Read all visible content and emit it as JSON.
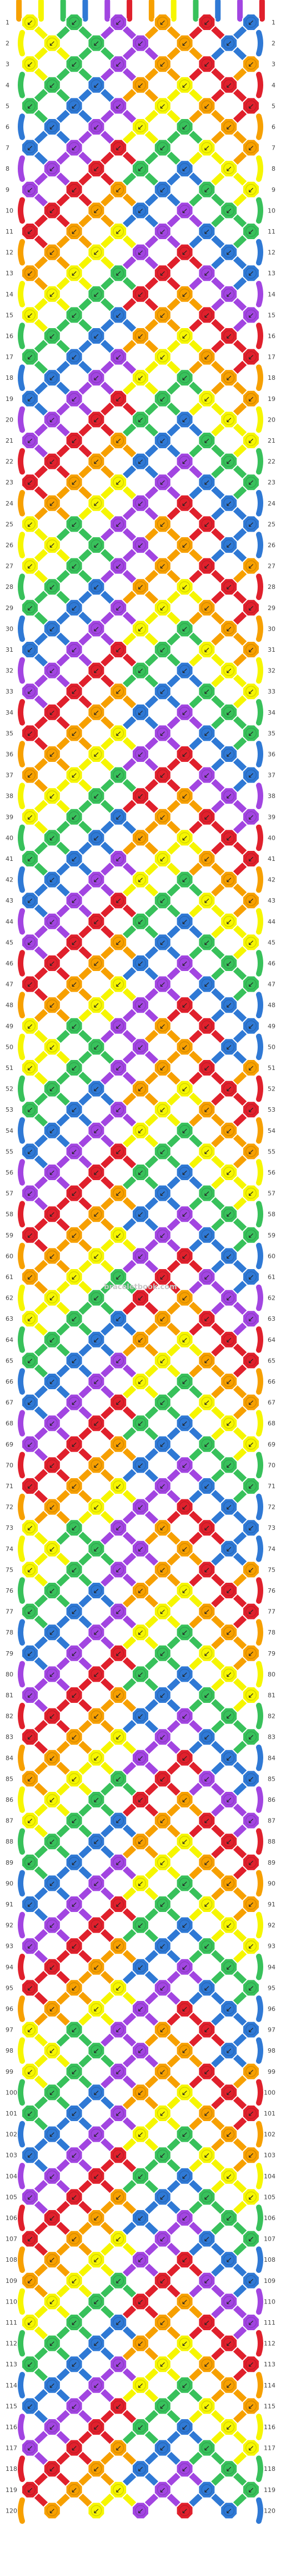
{
  "watermark": "braceletbook.com",
  "row_count": 120,
  "strand_colors": [
    "#f7a000",
    "#f6f600",
    "#38c15b",
    "#2f79d5",
    "#a245e1",
    "#e0202c",
    "#f7a000",
    "#f6f600",
    "#38c15b",
    "#2f79d5",
    "#a245e1",
    "#e0202c"
  ],
  "direction_glyph": "↙",
  "pattern_rows": [
    [
      "#f6f600",
      "#38c15b",
      "#a245e1",
      "#f7a000",
      "#e0202c",
      "#2f79d5"
    ],
    [
      "#f6f600",
      "#38c15b",
      "#a245e1",
      "#f7a000",
      "#2f79d5"
    ],
    [
      "#f6f600",
      "#38c15b",
      "#a245e1",
      "#f7a000",
      "#e0202c",
      "#f7a000"
    ],
    [
      "#38c15b",
      "#2f79d5",
      "#f7a000",
      "#f6f600",
      "#e0202c"
    ],
    [
      "#38c15b",
      "#2f79d5",
      "#a245e1",
      "#f6f600",
      "#f7a000",
      "#e0202c"
    ],
    [
      "#2f79d5",
      "#a245e1",
      "#f6f600",
      "#38c15b",
      "#f7a000"
    ],
    [
      "#2f79d5",
      "#a245e1",
      "#e0202c",
      "#38c15b",
      "#f6f600",
      "#f7a000"
    ],
    [
      "#a245e1",
      "#e0202c",
      "#38c15b",
      "#2f79d5",
      "#f6f600"
    ],
    [
      "#a245e1",
      "#e0202c",
      "#f7a000",
      "#2f79d5",
      "#38c15b",
      "#f6f600"
    ],
    [
      "#e0202c",
      "#f7a000",
      "#2f79d5",
      "#a245e1",
      "#38c15b"
    ],
    [
      "#e0202c",
      "#f7a000",
      "#f6f600",
      "#a245e1",
      "#2f79d5",
      "#38c15b"
    ],
    [
      "#f7a000",
      "#f6f600",
      "#a245e1",
      "#e0202c",
      "#2f79d5"
    ],
    [
      "#f7a000",
      "#f6f600",
      "#38c15b",
      "#e0202c",
      "#a245e1",
      "#2f79d5"
    ],
    [
      "#f6f600",
      "#38c15b",
      "#e0202c",
      "#f7a000",
      "#a245e1"
    ],
    [
      "#f6f600",
      "#38c15b",
      "#2f79d5",
      "#f7a000",
      "#e0202c",
      "#a245e1"
    ],
    [
      "#38c15b",
      "#2f79d5",
      "#f7a000",
      "#f6f600",
      "#e0202c"
    ],
    [
      "#38c15b",
      "#2f79d5",
      "#a245e1",
      "#f6f600",
      "#f7a000",
      "#e0202c"
    ],
    [
      "#2f79d5",
      "#a245e1",
      "#f6f600",
      "#38c15b",
      "#f7a000"
    ],
    [
      "#2f79d5",
      "#a245e1",
      "#e0202c",
      "#38c15b",
      "#f6f600",
      "#f7a000"
    ],
    [
      "#a245e1",
      "#e0202c",
      "#38c15b",
      "#2f79d5",
      "#f6f600"
    ],
    [
      "#a245e1",
      "#e0202c",
      "#f7a000",
      "#2f79d5",
      "#38c15b",
      "#f6f600"
    ],
    [
      "#e0202c",
      "#f7a000",
      "#2f79d5",
      "#a245e1",
      "#38c15b"
    ],
    [
      "#e0202c",
      "#f7a000",
      "#f6f600",
      "#a245e1",
      "#2f79d5",
      "#38c15b"
    ],
    [
      "#f7a000",
      "#f6f600",
      "#a245e1",
      "#e0202c",
      "#2f79d5"
    ]
  ]
}
